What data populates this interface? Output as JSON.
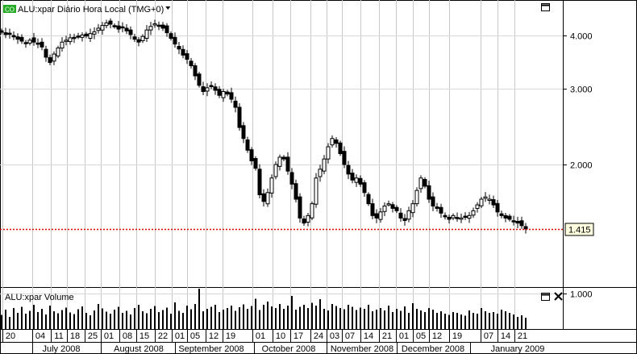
{
  "price_panel": {
    "title": "ALU:xpar Diário Hora Local (TMG+0)",
    "badge": "CO",
    "last_value_label": "1.415",
    "y_ticks": [
      "4.000",
      "3.000",
      "2.000",
      "1.000"
    ]
  },
  "volume_panel": {
    "title": "ALU:xpar Volume"
  },
  "x_axis": {
    "day_ticks": [
      "20",
      "04",
      "11",
      "18",
      "25",
      "01",
      "08",
      "15",
      "22",
      "01",
      "05",
      "12",
      "19",
      "01",
      "10",
      "17",
      "24",
      "03",
      "07",
      "14",
      "21",
      "01",
      "05",
      "12",
      "19",
      "07",
      "14",
      "21"
    ],
    "month_labels": [
      "July 2008",
      "August 2008",
      "September 2008",
      "October 2008",
      "November 2008",
      "December 2008",
      "January 2009"
    ]
  },
  "colors": {
    "up_candle": "#ffffff",
    "down_candle": "#000000",
    "last_price_line": "#e00000",
    "grid": "#c8c8c8",
    "badge": "#22aa22"
  },
  "icons": {
    "maximize": "maximize-icon",
    "close": "close-icon",
    "dropdown": "dropdown-arrow-icon"
  },
  "chart_data": {
    "type": "candlestick",
    "title": "ALU:xpar Diário Hora Local (TMG+0)",
    "y_scale": "log",
    "ylim": [
      0.68,
      5.2
    ],
    "last_price": 1.415,
    "date_range": [
      "2008-06-20",
      "2009-01-22"
    ],
    "close": [
      4.07,
      4.02,
      4.04,
      3.97,
      3.92,
      3.88,
      3.83,
      3.9,
      3.86,
      3.84,
      3.76,
      3.56,
      3.46,
      3.62,
      3.74,
      3.86,
      3.9,
      3.95,
      3.94,
      3.98,
      4.01,
      3.99,
      4.04,
      4.08,
      4.16,
      4.22,
      4.28,
      4.25,
      4.2,
      4.14,
      4.18,
      4.1,
      4.02,
      3.92,
      3.86,
      3.98,
      4.12,
      4.2,
      4.26,
      4.22,
      4.16,
      4.06,
      3.94,
      3.82,
      3.72,
      3.6,
      3.52,
      3.4,
      3.22,
      3.06,
      2.96,
      3.02,
      3.05,
      2.98,
      2.9,
      2.96,
      2.92,
      2.84,
      2.72,
      2.44,
      2.3,
      2.16,
      2.04,
      1.96,
      1.7,
      1.64,
      1.72,
      1.86,
      2.0,
      2.08,
      2.06,
      1.93,
      1.8,
      1.66,
      1.5,
      1.46,
      1.52,
      1.62,
      1.86,
      1.95,
      2.06,
      2.2,
      2.3,
      2.24,
      2.12,
      2.0,
      1.9,
      1.84,
      1.86,
      1.8,
      1.72,
      1.62,
      1.52,
      1.5,
      1.55,
      1.6,
      1.62,
      1.58,
      1.56,
      1.5,
      1.48,
      1.56,
      1.62,
      1.74,
      1.86,
      1.78,
      1.66,
      1.6,
      1.58,
      1.54,
      1.51,
      1.49,
      1.52,
      1.5,
      1.5,
      1.51,
      1.52,
      1.56,
      1.61,
      1.66,
      1.68,
      1.66,
      1.61,
      1.55,
      1.52,
      1.5,
      1.49,
      1.47,
      1.46,
      1.44,
      1.415
    ],
    "volume_relative": [
      0.35,
      0.48,
      0.3,
      0.52,
      0.4,
      0.55,
      0.38,
      0.45,
      0.6,
      0.42,
      0.5,
      0.36,
      0.58,
      0.44,
      0.39,
      0.47,
      0.53,
      0.41,
      0.37,
      0.49,
      0.56,
      0.4,
      0.34,
      0.46,
      0.62,
      0.51,
      0.43,
      0.38,
      0.48,
      0.55,
      0.4,
      0.45,
      0.36,
      0.52,
      0.6,
      0.44,
      0.39,
      0.5,
      0.57,
      0.42,
      0.47,
      0.53,
      0.38,
      0.66,
      0.45,
      0.4,
      0.58,
      0.49,
      0.62,
      1.0,
      0.44,
      0.5,
      0.55,
      0.6,
      0.42,
      0.48,
      0.52,
      0.58,
      0.45,
      0.54,
      0.61,
      0.5,
      0.57,
      0.75,
      0.47,
      0.6,
      0.68,
      0.56,
      0.52,
      0.62,
      0.5,
      0.58,
      0.82,
      0.48,
      0.55,
      0.6,
      0.52,
      0.65,
      0.58,
      0.74,
      0.5,
      0.46,
      0.62,
      0.57,
      0.52,
      0.49,
      0.6,
      0.55,
      0.47,
      0.53,
      0.5,
      0.6,
      0.44,
      0.48,
      0.52,
      0.46,
      0.58,
      0.42,
      0.5,
      0.45,
      0.56,
      0.4,
      0.64,
      0.5,
      0.46,
      0.42,
      0.52,
      0.48,
      0.4,
      0.44,
      0.38,
      0.35,
      0.42,
      0.4,
      0.36,
      0.33,
      0.46,
      0.4,
      0.38,
      0.52,
      0.44,
      0.4,
      0.42,
      0.38,
      0.48,
      0.44,
      0.4,
      0.36,
      0.3,
      0.34,
      0.28
    ]
  }
}
